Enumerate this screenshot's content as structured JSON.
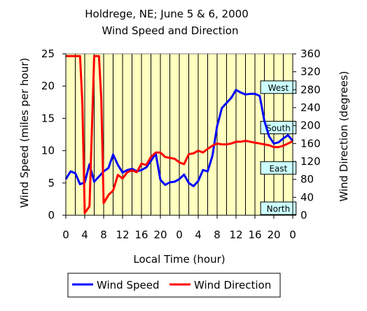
{
  "chart_data": {
    "type": "line",
    "title": "Holdrege, NE; June 5 & 6, 2000",
    "subtitle": "Wind Speed and Direction",
    "xlabel": "Local Time (hour)",
    "ylabel_left": "Wind Speed (miles per hour)",
    "ylabel_right": "Wind Direction (degrees)",
    "x_ticks": [
      "0",
      "4",
      "8",
      "12",
      "16",
      "20",
      "0",
      "4",
      "8",
      "12",
      "16",
      "20",
      "0"
    ],
    "xlim": [
      0,
      48
    ],
    "ylim_left": [
      0,
      25
    ],
    "ylim_right": [
      0,
      360
    ],
    "y_ticks_left": [
      "0",
      "5",
      "10",
      "15",
      "20",
      "25"
    ],
    "y_ticks_right": [
      "0",
      "40",
      "80",
      "120",
      "160",
      "200",
      "240",
      "280",
      "320",
      "360"
    ],
    "grid": "vertical gridlines every 2 hours",
    "plot_background": "#ffffc0",
    "legend_position": "bottom",
    "direction_labels": [
      {
        "label": "North",
        "degrees": 0
      },
      {
        "label": "East",
        "degrees": 90
      },
      {
        "label": "South",
        "degrees": 180
      },
      {
        "label": "West",
        "degrees": 270
      }
    ],
    "series": [
      {
        "name": "Wind Speed",
        "axis": "left",
        "color": "#0000ff",
        "x": [
          0,
          1,
          2,
          3,
          4,
          5,
          6,
          7,
          8,
          9,
          10,
          11,
          12,
          13,
          14,
          15,
          16,
          17,
          18,
          19,
          20,
          21,
          22,
          23,
          24,
          25,
          26,
          27,
          28,
          29,
          30,
          31,
          32,
          33,
          34,
          35,
          36,
          37,
          38,
          39,
          40,
          41,
          42,
          43,
          44,
          45,
          46,
          47,
          48
        ],
        "y": [
          5.6,
          6.8,
          6.5,
          4.8,
          5.1,
          7.9,
          5.2,
          6.0,
          6.8,
          7.3,
          9.4,
          7.8,
          6.6,
          7.0,
          7.2,
          6.8,
          7.0,
          7.4,
          8.4,
          9.6,
          5.5,
          4.7,
          5.1,
          5.2,
          5.6,
          6.3,
          5.0,
          4.5,
          5.3,
          7.0,
          6.8,
          9.2,
          13.8,
          16.6,
          17.4,
          18.2,
          19.4,
          19.0,
          18.7,
          18.8,
          18.8,
          18.5,
          14.6,
          12.2,
          11.1,
          11.3,
          11.9,
          12.4,
          11.5
        ]
      },
      {
        "name": "Wind Direction",
        "axis": "right",
        "color": "#ff0000",
        "x": [
          0,
          1,
          2,
          3,
          3.5,
          4,
          5,
          6,
          7,
          7.5,
          8,
          9,
          10,
          11,
          12,
          13,
          14,
          15,
          16,
          17,
          18,
          19,
          20,
          21,
          22,
          23,
          24,
          25,
          26,
          27,
          28,
          29,
          30,
          31,
          32,
          33,
          34,
          35,
          36,
          37,
          38,
          39,
          40,
          41,
          42,
          43,
          44,
          45,
          46,
          47,
          48
        ],
        "y": [
          355,
          355,
          355,
          355,
          250,
          5,
          20,
          355,
          355,
          260,
          27,
          45,
          55,
          90,
          82,
          96,
          100,
          96,
          115,
          112,
          130,
          140,
          140,
          130,
          128,
          126,
          118,
          114,
          136,
          138,
          144,
          140,
          148,
          155,
          160,
          158,
          158,
          160,
          164,
          164,
          166,
          164,
          162,
          160,
          158,
          156,
          152,
          152,
          155,
          160,
          165
        ]
      }
    ]
  }
}
